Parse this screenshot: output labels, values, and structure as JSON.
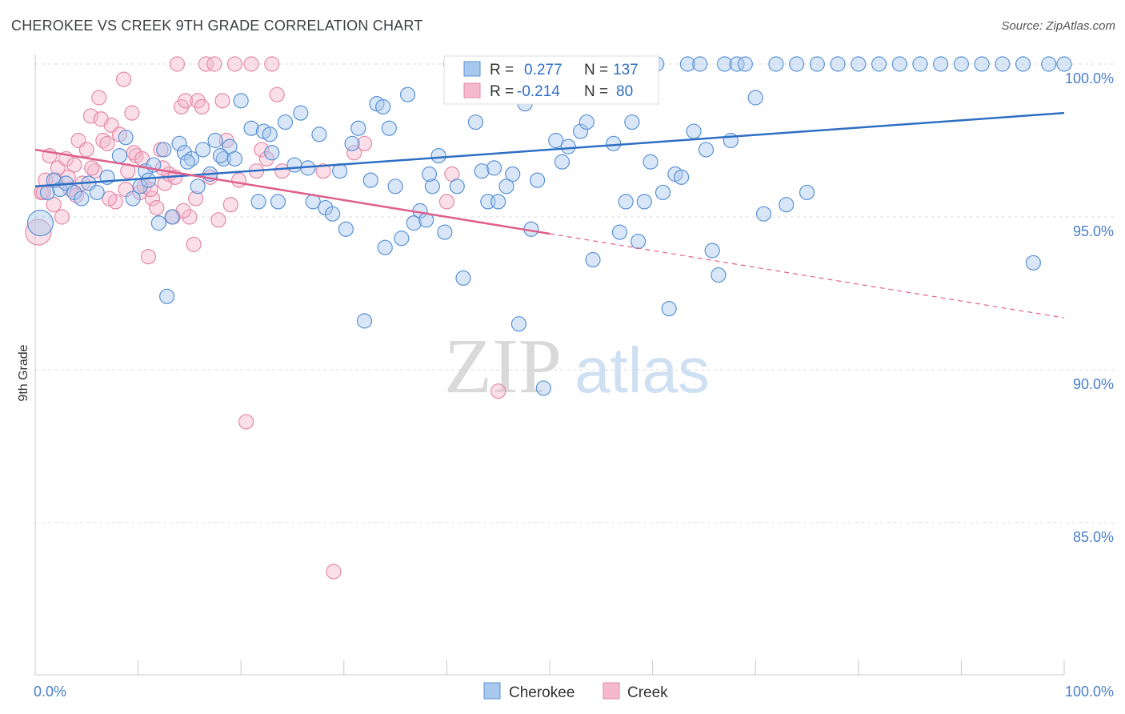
{
  "header": {
    "title": "CHEROKEE VS CREEK 9TH GRADE CORRELATION CHART",
    "source": "Source: ZipAtlas.com"
  },
  "watermark": {
    "zip": "ZIP",
    "atlas": "atlas"
  },
  "colors": {
    "cherokee_fill": "#a9c8ee",
    "cherokee_stroke": "#5b93d6",
    "cherokee_line": "#2f6fc4",
    "creek_fill": "#f5b9cd",
    "creek_stroke": "#e58aa8",
    "creek_line": "#e0608b",
    "grid": "#dcdcdc",
    "axis_label": "#4a7fc7"
  },
  "legend": {
    "row1": {
      "r_label": "R =",
      "r_value": "0.277",
      "n_label": "N =",
      "n_value": "137"
    },
    "row2": {
      "r_label": "R =",
      "r_value": "-0.214",
      "n_label": "N =",
      "n_value": "80"
    }
  },
  "chart_data": {
    "type": "scatter",
    "title": "CHEROKEE VS CREEK 9TH GRADE CORRELATION CHART",
    "xlabel": "",
    "ylabel": "9th Grade",
    "xlim": [
      0,
      100
    ],
    "ylim": [
      80.5,
      100.7
    ],
    "x_tick_labels": [
      "0.0%",
      "100.0%"
    ],
    "y_ticks": [
      100,
      95,
      90,
      85
    ],
    "y_tick_labels": [
      "100.0%",
      "95.0%",
      "90.0%",
      "85.0%"
    ],
    "grid": true,
    "legend_placement": "bottom-center",
    "series": [
      {
        "name": "Cherokee",
        "trend": {
          "x": [
            0,
            100
          ],
          "y": [
            96.0,
            98.4
          ],
          "solid_to": 100
        },
        "points": [
          [
            0.5,
            94.8
          ],
          [
            1.2,
            95.8
          ],
          [
            1.8,
            96.2
          ],
          [
            2.4,
            95.9
          ],
          [
            3.0,
            96.1
          ],
          [
            3.8,
            95.8
          ],
          [
            4.5,
            95.6
          ],
          [
            5.2,
            96.1
          ],
          [
            6.0,
            95.8
          ],
          [
            7.0,
            96.3
          ],
          [
            8.2,
            97.0
          ],
          [
            8.8,
            97.6
          ],
          [
            9.5,
            95.6
          ],
          [
            10.2,
            96.0
          ],
          [
            10.7,
            96.5
          ],
          [
            11.0,
            96.2
          ],
          [
            11.5,
            96.7
          ],
          [
            12.0,
            94.8
          ],
          [
            12.5,
            97.2
          ],
          [
            12.8,
            92.4
          ],
          [
            13.3,
            95.0
          ],
          [
            14.0,
            97.4
          ],
          [
            14.5,
            97.1
          ],
          [
            15.2,
            96.9
          ],
          [
            15.8,
            96.0
          ],
          [
            16.3,
            97.2
          ],
          [
            17.0,
            96.4
          ],
          [
            17.5,
            97.5
          ],
          [
            18.3,
            96.9
          ],
          [
            18.9,
            97.3
          ],
          [
            19.4,
            96.9
          ],
          [
            20.0,
            98.8
          ],
          [
            21.0,
            97.9
          ],
          [
            21.7,
            95.5
          ],
          [
            22.2,
            97.8
          ],
          [
            22.8,
            97.7
          ],
          [
            23.6,
            95.5
          ],
          [
            24.3,
            98.1
          ],
          [
            25.2,
            96.7
          ],
          [
            25.8,
            98.4
          ],
          [
            27.0,
            95.5
          ],
          [
            27.6,
            97.7
          ],
          [
            28.2,
            95.3
          ],
          [
            28.9,
            95.1
          ],
          [
            29.6,
            96.5
          ],
          [
            30.2,
            94.6
          ],
          [
            30.8,
            97.4
          ],
          [
            31.4,
            97.9
          ],
          [
            32.0,
            91.6
          ],
          [
            32.6,
            96.2
          ],
          [
            33.2,
            98.7
          ],
          [
            33.8,
            98.6
          ],
          [
            34.4,
            97.9
          ],
          [
            35.0,
            96.0
          ],
          [
            35.6,
            94.3
          ],
          [
            36.2,
            99.0
          ],
          [
            36.8,
            94.8
          ],
          [
            37.4,
            95.2
          ],
          [
            38.0,
            94.9
          ],
          [
            38.6,
            96.0
          ],
          [
            39.2,
            97.0
          ],
          [
            39.8,
            94.5
          ],
          [
            40.4,
            100.0
          ],
          [
            41.0,
            96.0
          ],
          [
            41.6,
            93.0
          ],
          [
            42.2,
            100.0
          ],
          [
            42.8,
            98.1
          ],
          [
            43.4,
            96.5
          ],
          [
            44.0,
            95.5
          ],
          [
            44.6,
            96.6
          ],
          [
            45.2,
            100.0
          ],
          [
            45.8,
            96.0
          ],
          [
            46.4,
            96.4
          ],
          [
            47.0,
            91.5
          ],
          [
            47.6,
            98.7
          ],
          [
            48.2,
            94.6
          ],
          [
            48.8,
            96.2
          ],
          [
            49.4,
            89.4
          ],
          [
            50.0,
            99.8
          ],
          [
            50.6,
            97.5
          ],
          [
            51.2,
            96.8
          ],
          [
            51.8,
            97.3
          ],
          [
            52.4,
            100.0
          ],
          [
            53.0,
            97.8
          ],
          [
            53.6,
            98.1
          ],
          [
            54.2,
            93.6
          ],
          [
            55.0,
            100.0
          ],
          [
            55.6,
            100.0
          ],
          [
            56.2,
            97.4
          ],
          [
            56.8,
            94.5
          ],
          [
            57.4,
            95.5
          ],
          [
            58.0,
            98.1
          ],
          [
            58.6,
            94.2
          ],
          [
            59.2,
            95.5
          ],
          [
            59.8,
            96.8
          ],
          [
            60.4,
            100.0
          ],
          [
            61.0,
            95.8
          ],
          [
            61.6,
            92.0
          ],
          [
            62.2,
            96.4
          ],
          [
            62.8,
            96.3
          ],
          [
            63.4,
            100.0
          ],
          [
            64.0,
            97.8
          ],
          [
            64.6,
            100.0
          ],
          [
            65.2,
            97.2
          ],
          [
            65.8,
            93.9
          ],
          [
            66.4,
            93.1
          ],
          [
            67.0,
            100.0
          ],
          [
            67.6,
            97.5
          ],
          [
            68.2,
            100.0
          ],
          [
            69.0,
            100.0
          ],
          [
            70.0,
            98.9
          ],
          [
            70.8,
            95.1
          ],
          [
            72.0,
            100.0
          ],
          [
            73.0,
            95.4
          ],
          [
            74.0,
            100.0
          ],
          [
            75.0,
            95.8
          ],
          [
            76.0,
            100.0
          ],
          [
            78.0,
            100.0
          ],
          [
            80.0,
            100.0
          ],
          [
            82.0,
            100.0
          ],
          [
            84.0,
            100.0
          ],
          [
            86.0,
            100.0
          ],
          [
            88.0,
            100.0
          ],
          [
            90.0,
            100.0
          ],
          [
            92.0,
            100.0
          ],
          [
            94.0,
            100.0
          ],
          [
            96.0,
            100.0
          ],
          [
            97.0,
            93.5
          ],
          [
            98.5,
            100.0
          ],
          [
            100.0,
            100.0
          ],
          [
            14.8,
            96.8
          ],
          [
            18.0,
            97.0
          ],
          [
            23.0,
            97.1
          ],
          [
            26.5,
            96.6
          ],
          [
            34.0,
            94.0
          ],
          [
            38.3,
            96.4
          ],
          [
            45.0,
            95.5
          ]
        ]
      },
      {
        "name": "Creek",
        "trend": {
          "x": [
            0,
            100
          ],
          "y": [
            97.2,
            91.7
          ],
          "solid_to": 50
        },
        "points": [
          [
            0.3,
            94.5
          ],
          [
            0.6,
            95.8
          ],
          [
            1.0,
            96.2
          ],
          [
            1.4,
            97.0
          ],
          [
            1.8,
            95.4
          ],
          [
            2.2,
            96.6
          ],
          [
            2.6,
            95.0
          ],
          [
            3.0,
            96.9
          ],
          [
            3.4,
            95.9
          ],
          [
            3.8,
            96.7
          ],
          [
            4.2,
            97.5
          ],
          [
            4.6,
            96.1
          ],
          [
            5.0,
            97.2
          ],
          [
            5.4,
            98.3
          ],
          [
            5.8,
            96.5
          ],
          [
            6.2,
            98.9
          ],
          [
            6.6,
            97.5
          ],
          [
            7.0,
            97.4
          ],
          [
            7.4,
            98.0
          ],
          [
            7.8,
            95.5
          ],
          [
            8.2,
            97.7
          ],
          [
            8.6,
            99.5
          ],
          [
            9.0,
            96.5
          ],
          [
            9.4,
            98.4
          ],
          [
            9.8,
            97.0
          ],
          [
            10.2,
            95.8
          ],
          [
            10.6,
            96.0
          ],
          [
            11.0,
            93.7
          ],
          [
            11.4,
            95.6
          ],
          [
            11.8,
            95.3
          ],
          [
            12.2,
            97.2
          ],
          [
            12.6,
            96.1
          ],
          [
            13.0,
            96.4
          ],
          [
            13.4,
            95.0
          ],
          [
            13.8,
            100.0
          ],
          [
            14.2,
            98.6
          ],
          [
            14.6,
            98.8
          ],
          [
            15.0,
            95.0
          ],
          [
            15.4,
            94.1
          ],
          [
            15.8,
            98.8
          ],
          [
            16.2,
            98.6
          ],
          [
            16.6,
            100.0
          ],
          [
            17.0,
            96.3
          ],
          [
            17.4,
            100.0
          ],
          [
            17.8,
            94.9
          ],
          [
            18.2,
            98.8
          ],
          [
            18.6,
            97.5
          ],
          [
            19.0,
            95.4
          ],
          [
            19.4,
            100.0
          ],
          [
            19.8,
            96.2
          ],
          [
            20.5,
            88.3
          ],
          [
            21.0,
            100.0
          ],
          [
            21.5,
            96.5
          ],
          [
            22.0,
            97.2
          ],
          [
            22.5,
            96.9
          ],
          [
            23.0,
            100.0
          ],
          [
            23.5,
            99.0
          ],
          [
            24.0,
            96.5
          ],
          [
            28.0,
            96.5
          ],
          [
            29.0,
            83.4
          ],
          [
            31.0,
            97.1
          ],
          [
            32.0,
            97.4
          ],
          [
            40.0,
            95.5
          ],
          [
            40.5,
            96.4
          ],
          [
            45.0,
            89.3
          ],
          [
            0.8,
            95.8
          ],
          [
            2.0,
            96.2
          ],
          [
            3.2,
            96.3
          ],
          [
            4.0,
            95.7
          ],
          [
            5.5,
            96.6
          ],
          [
            6.4,
            98.2
          ],
          [
            7.2,
            95.6
          ],
          [
            8.8,
            95.9
          ],
          [
            9.6,
            97.1
          ],
          [
            10.4,
            96.9
          ],
          [
            11.2,
            95.9
          ],
          [
            12.4,
            96.6
          ],
          [
            13.6,
            96.3
          ],
          [
            14.4,
            95.2
          ],
          [
            15.6,
            95.6
          ]
        ]
      }
    ]
  },
  "bottom_legend": {
    "cherokee": "Cherokee",
    "creek": "Creek"
  }
}
